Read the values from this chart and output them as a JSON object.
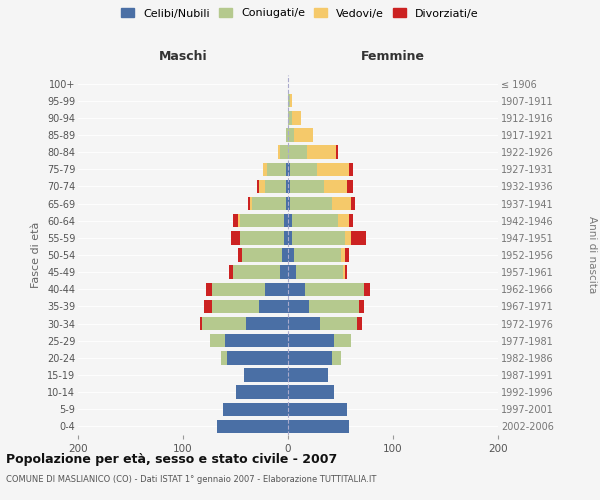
{
  "age_groups": [
    "0-4",
    "5-9",
    "10-14",
    "15-19",
    "20-24",
    "25-29",
    "30-34",
    "35-39",
    "40-44",
    "45-49",
    "50-54",
    "55-59",
    "60-64",
    "65-69",
    "70-74",
    "75-79",
    "80-84",
    "85-89",
    "90-94",
    "95-99",
    "100+"
  ],
  "birth_years": [
    "2002-2006",
    "1997-2001",
    "1992-1996",
    "1987-1991",
    "1982-1986",
    "1977-1981",
    "1972-1976",
    "1967-1971",
    "1962-1966",
    "1957-1961",
    "1952-1956",
    "1947-1951",
    "1942-1946",
    "1937-1941",
    "1932-1936",
    "1927-1931",
    "1922-1926",
    "1917-1921",
    "1912-1916",
    "1907-1911",
    "≤ 1906"
  ],
  "males": {
    "celibi": [
      68,
      62,
      50,
      42,
      58,
      60,
      40,
      28,
      22,
      8,
      6,
      4,
      4,
      2,
      2,
      2,
      0,
      0,
      0,
      0,
      0
    ],
    "coniugati": [
      0,
      0,
      0,
      0,
      6,
      14,
      42,
      44,
      50,
      44,
      38,
      42,
      42,
      32,
      20,
      18,
      8,
      2,
      0,
      0,
      0
    ],
    "vedovi": [
      0,
      0,
      0,
      0,
      0,
      0,
      0,
      0,
      0,
      0,
      0,
      0,
      2,
      2,
      6,
      4,
      2,
      0,
      0,
      0,
      0
    ],
    "divorziati": [
      0,
      0,
      0,
      0,
      0,
      0,
      2,
      8,
      6,
      4,
      4,
      8,
      4,
      2,
      2,
      0,
      0,
      0,
      0,
      0,
      0
    ]
  },
  "females": {
    "nubili": [
      58,
      56,
      44,
      38,
      42,
      44,
      30,
      20,
      16,
      8,
      6,
      4,
      4,
      2,
      2,
      2,
      0,
      0,
      0,
      0,
      0
    ],
    "coniugate": [
      0,
      0,
      0,
      0,
      8,
      16,
      36,
      48,
      56,
      44,
      44,
      50,
      44,
      40,
      32,
      26,
      18,
      6,
      4,
      2,
      0
    ],
    "vedove": [
      0,
      0,
      0,
      0,
      0,
      0,
      0,
      0,
      0,
      2,
      4,
      6,
      10,
      18,
      22,
      30,
      28,
      18,
      8,
      2,
      0
    ],
    "divorziate": [
      0,
      0,
      0,
      0,
      0,
      0,
      4,
      4,
      6,
      2,
      4,
      14,
      4,
      4,
      6,
      4,
      2,
      0,
      0,
      0,
      0
    ]
  },
  "colors": {
    "celibi": "#4a6fa5",
    "coniugati": "#b5c98e",
    "vedovi": "#f5c96a",
    "divorziati": "#cc2222"
  },
  "title": "Popolazione per età, sesso e stato civile - 2007",
  "subtitle": "COMUNE DI MASLIANICO (CO) - Dati ISTAT 1° gennaio 2007 - Elaborazione TUTTITALIA.IT",
  "xlabel_left": "Maschi",
  "xlabel_right": "Femmine",
  "ylabel_left": "Fasce di età",
  "ylabel_right": "Anni di nascita",
  "xlim": 200,
  "legend_labels": [
    "Celibi/Nubili",
    "Coniugati/e",
    "Vedovi/e",
    "Divorziati/e"
  ],
  "background_color": "#f5f5f5"
}
